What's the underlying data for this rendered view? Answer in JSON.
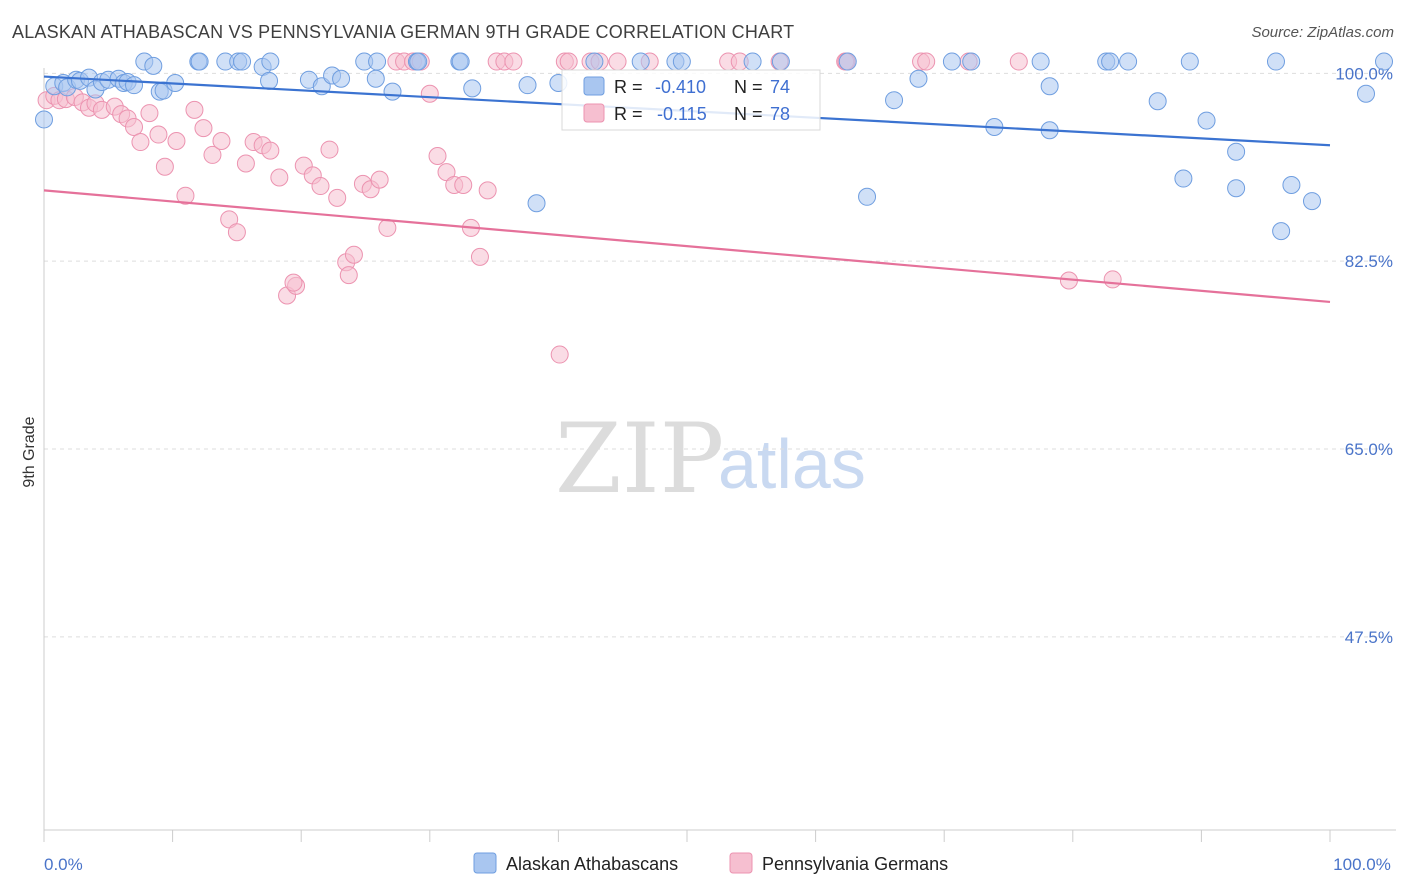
{
  "title": "ALASKAN ATHABASCAN VS PENNSYLVANIA GERMAN 9TH GRADE CORRELATION CHART",
  "source": "Source: ZipAtlas.com",
  "watermark": {
    "zip": "ZIP",
    "atlas": "atlas"
  },
  "colors": {
    "blue_fill": "#a9c6f0",
    "blue_stroke": "#6f9ee0",
    "blue_line": "#3b73d1",
    "pink_fill": "#f6bfd0",
    "pink_stroke": "#ec93b0",
    "pink_line": "#e5719a",
    "tick_text": "#4a74c9",
    "grid": "#dddddd"
  },
  "chart_data": {
    "type": "scatter",
    "title": "ALASKAN ATHABASCAN VS PENNSYLVANIA GERMAN 9TH GRADE CORRELATION CHART",
    "xlabel": "",
    "ylabel": "9th Grade",
    "xlim": [
      0,
      100
    ],
    "ylim": [
      29.5,
      100.5
    ],
    "x_tick_labels": [
      {
        "value": 0,
        "label": "0.0%"
      },
      {
        "value": 100,
        "label": "100.0%"
      }
    ],
    "y_ticks": [
      {
        "value": 100,
        "label": "100.0%"
      },
      {
        "value": 82.5,
        "label": "82.5%"
      },
      {
        "value": 65,
        "label": "65.0%"
      },
      {
        "value": 47.5,
        "label": "47.5%"
      }
    ],
    "x_minor_ticks": [
      0,
      10,
      20,
      30,
      40,
      50,
      60,
      70,
      80,
      90,
      100
    ],
    "legend": [
      {
        "name": "Alaskan Athabascans",
        "color": "#a9c6f0"
      },
      {
        "name": "Pennsylvania Germans",
        "color": "#f6bfd0"
      }
    ],
    "stats": [
      {
        "series": "Alaskan Athabascans",
        "r_label": "R =",
        "r": "-0.410",
        "n_label": "N =",
        "n": "74"
      },
      {
        "series": "Pennsylvania Germans",
        "r_label": "R =",
        "r": "-0.115",
        "n_label": "N =",
        "n": "78"
      }
    ],
    "series": [
      {
        "name": "Alaskan Athabascans",
        "trend": {
          "x": [
            0,
            100
          ],
          "y": [
            99.7,
            93.3
          ]
        },
        "points": [
          [
            0,
            95.7
          ],
          [
            0.8,
            98.8
          ],
          [
            1.5,
            99.1
          ],
          [
            1.8,
            98.7
          ],
          [
            2.5,
            99.4
          ],
          [
            2.8,
            99.3
          ],
          [
            3.5,
            99.6
          ],
          [
            4.0,
            98.5
          ],
          [
            4.5,
            99.2
          ],
          [
            5.0,
            99.4
          ],
          [
            5.8,
            99.5
          ],
          [
            6.2,
            99.1
          ],
          [
            6.5,
            99.2
          ],
          [
            7.0,
            98.9
          ],
          [
            7.8,
            101.1
          ],
          [
            8.5,
            100.7
          ],
          [
            9.0,
            98.3
          ],
          [
            9.3,
            98.4
          ],
          [
            10.2,
            99.1
          ],
          [
            12.0,
            101.1
          ],
          [
            12.1,
            101.1
          ],
          [
            14.1,
            101.1
          ],
          [
            15.1,
            101.1
          ],
          [
            15.4,
            101.1
          ],
          [
            17.0,
            100.6
          ],
          [
            17.5,
            99.3
          ],
          [
            17.6,
            101.1
          ],
          [
            20.6,
            99.4
          ],
          [
            21.6,
            98.8
          ],
          [
            22.4,
            99.8
          ],
          [
            23.1,
            99.5
          ],
          [
            24.9,
            101.1
          ],
          [
            25.9,
            101.1
          ],
          [
            25.8,
            99.5
          ],
          [
            27.1,
            98.3
          ],
          [
            29.0,
            101.1
          ],
          [
            29.1,
            101.1
          ],
          [
            32.3,
            101.1
          ],
          [
            32.4,
            101.1
          ],
          [
            37.6,
            98.9
          ],
          [
            33.3,
            98.6
          ],
          [
            40.0,
            99.1
          ],
          [
            42.8,
            101.1
          ],
          [
            38.3,
            87.9
          ],
          [
            46.4,
            101.1
          ],
          [
            49.1,
            101.1
          ],
          [
            49.6,
            101.1
          ],
          [
            55.1,
            101.1
          ],
          [
            57.3,
            101.1
          ],
          [
            62.5,
            101.1
          ],
          [
            64.0,
            88.5
          ],
          [
            66.1,
            97.5
          ],
          [
            68.0,
            99.5
          ],
          [
            70.6,
            101.1
          ],
          [
            72.1,
            101.1
          ],
          [
            77.5,
            101.1
          ],
          [
            73.9,
            95.0
          ],
          [
            78.2,
            94.7
          ],
          [
            78.2,
            98.8
          ],
          [
            82.6,
            101.1
          ],
          [
            82.9,
            101.1
          ],
          [
            84.3,
            101.1
          ],
          [
            86.6,
            97.4
          ],
          [
            89.1,
            101.1
          ],
          [
            88.6,
            90.2
          ],
          [
            90.4,
            95.6
          ],
          [
            92.7,
            92.7
          ],
          [
            92.7,
            89.3
          ],
          [
            95.8,
            101.1
          ],
          [
            98.6,
            88.1
          ],
          [
            96.2,
            85.3
          ],
          [
            104.2,
            101.1
          ],
          [
            97.0,
            89.6
          ],
          [
            102.8,
            98.1
          ]
        ]
      },
      {
        "name": "Pennsylvania Germans",
        "trend": {
          "x": [
            0,
            100
          ],
          "y": [
            89.1,
            78.7
          ]
        },
        "points": [
          [
            0.2,
            97.5
          ],
          [
            0.8,
            97.9
          ],
          [
            1.2,
            97.5
          ],
          [
            1.7,
            97.6
          ],
          [
            2.4,
            97.8
          ],
          [
            3.0,
            97.3
          ],
          [
            3.5,
            96.8
          ],
          [
            4.0,
            97.2
          ],
          [
            4.5,
            96.6
          ],
          [
            5.5,
            96.9
          ],
          [
            6.0,
            96.2
          ],
          [
            6.5,
            95.8
          ],
          [
            7.0,
            95.0
          ],
          [
            7.5,
            93.6
          ],
          [
            8.2,
            96.3
          ],
          [
            8.9,
            94.3
          ],
          [
            9.4,
            91.3
          ],
          [
            10.3,
            93.7
          ],
          [
            11.0,
            88.6
          ],
          [
            11.7,
            96.6
          ],
          [
            12.4,
            94.9
          ],
          [
            13.1,
            92.4
          ],
          [
            13.8,
            93.7
          ],
          [
            14.4,
            86.4
          ],
          [
            15.0,
            85.2
          ],
          [
            15.7,
            91.6
          ],
          [
            16.3,
            93.6
          ],
          [
            17.0,
            93.3
          ],
          [
            17.6,
            92.8
          ],
          [
            18.3,
            90.3
          ],
          [
            18.9,
            79.3
          ],
          [
            19.6,
            80.2
          ],
          [
            20.2,
            91.4
          ],
          [
            20.9,
            90.5
          ],
          [
            21.5,
            89.5
          ],
          [
            22.2,
            92.9
          ],
          [
            22.8,
            88.4
          ],
          [
            23.5,
            82.4
          ],
          [
            24.1,
            83.1
          ],
          [
            24.8,
            89.7
          ],
          [
            25.4,
            89.2
          ],
          [
            26.1,
            90.1
          ],
          [
            26.7,
            85.6
          ],
          [
            27.4,
            101.1
          ],
          [
            28.0,
            101.1
          ],
          [
            28.7,
            101.1
          ],
          [
            29.3,
            101.1
          ],
          [
            30.0,
            98.1
          ],
          [
            30.6,
            92.3
          ],
          [
            31.3,
            90.8
          ],
          [
            31.9,
            89.6
          ],
          [
            32.6,
            89.6
          ],
          [
            33.2,
            85.6
          ],
          [
            33.9,
            82.9
          ],
          [
            34.5,
            89.1
          ],
          [
            35.2,
            101.1
          ],
          [
            35.8,
            101.1
          ],
          [
            36.5,
            101.1
          ],
          [
            40.5,
            101.1
          ],
          [
            40.8,
            101.1
          ],
          [
            42.5,
            101.1
          ],
          [
            43.2,
            101.1
          ],
          [
            44.6,
            101.1
          ],
          [
            47.1,
            101.1
          ],
          [
            53.2,
            101.1
          ],
          [
            54.1,
            101.1
          ],
          [
            57.2,
            101.1
          ],
          [
            62.3,
            101.1
          ],
          [
            62.4,
            101.1
          ],
          [
            68.2,
            101.1
          ],
          [
            68.6,
            101.1
          ],
          [
            71.9,
            101.1
          ],
          [
            75.8,
            101.1
          ],
          [
            79.7,
            80.7
          ],
          [
            83.1,
            80.8
          ],
          [
            23.7,
            81.2
          ],
          [
            19.4,
            80.5
          ],
          [
            40.1,
            73.8
          ]
        ]
      }
    ]
  }
}
